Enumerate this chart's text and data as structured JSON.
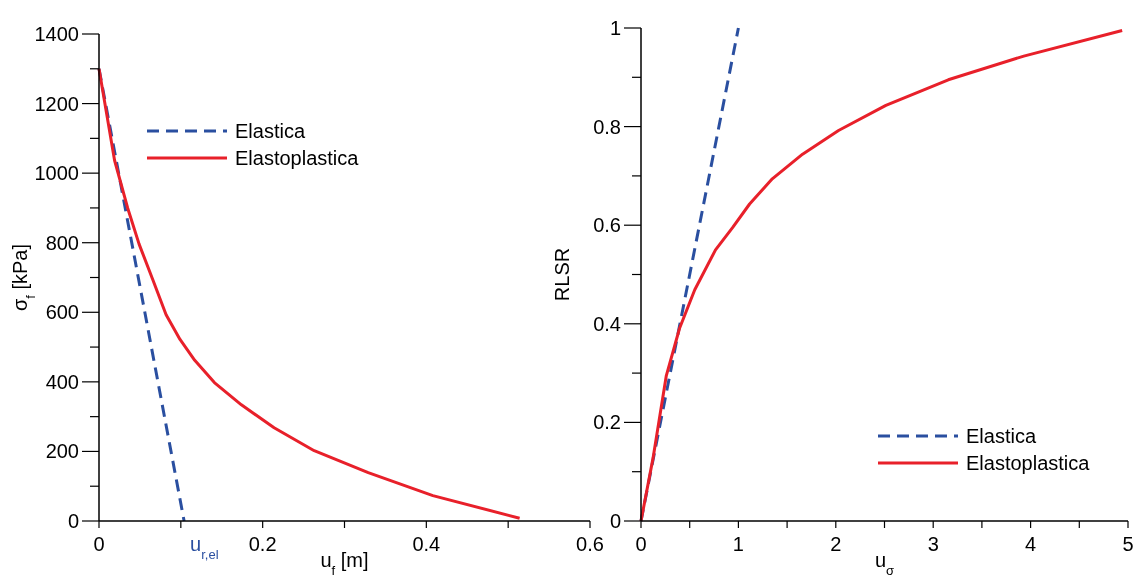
{
  "chart_data": [
    {
      "type": "line",
      "xlabel": "u$_{f}$ [m]",
      "ylabel": "σ$_{f}$ [kPa]",
      "xlim": [
        0,
        0.6
      ],
      "ylim": [
        0,
        1400
      ],
      "xticks": [
        0,
        {
          "value": 0.1,
          "label": null
        },
        0.2,
        {
          "value": 0.3,
          "label": null
        },
        0.4,
        {
          "value": 0.5,
          "label": null
        },
        0.6
      ],
      "yticks": [
        0,
        {
          "value": 100,
          "label": null
        },
        200,
        {
          "value": 300,
          "label": null
        },
        400,
        {
          "value": 500,
          "label": null
        },
        600,
        {
          "value": 700,
          "label": null
        },
        800,
        {
          "value": 900,
          "label": null
        },
        1000,
        {
          "value": 1100,
          "label": null
        },
        1200,
        {
          "value": 1300,
          "label": null
        },
        1400
      ],
      "legend": "top left",
      "annotations": [
        {
          "text": "u$_{r,el}$",
          "x": 0.104,
          "y": 0
        }
      ],
      "series": [
        {
          "name": "Elastica",
          "color": "#2a4fa0",
          "line_style": "dashed",
          "x": [
            0,
            0.104
          ],
          "values": [
            1300,
            0
          ]
        },
        {
          "name": "Elastoplastica",
          "color": "#e8202a",
          "line_style": "solid",
          "x": [
            0,
            0.019,
            0.035,
            0.049,
            0.066,
            0.082,
            0.099,
            0.117,
            0.141,
            0.174,
            0.214,
            0.263,
            0.329,
            0.408,
            0.514
          ],
          "values": [
            1300,
            1037,
            900,
            796,
            692,
            593,
            522,
            462,
            398,
            334,
            268,
            202,
            139,
            73,
            8
          ]
        }
      ]
    },
    {
      "type": "line",
      "xlabel": "u$_{σ}$",
      "ylabel": "RLSR",
      "xlim": [
        0,
        5
      ],
      "ylim": [
        0,
        1
      ],
      "xticks": [
        0,
        {
          "value": 0.5,
          "label": null
        },
        1,
        {
          "value": 1.5,
          "label": null
        },
        2,
        {
          "value": 2.5,
          "label": null
        },
        3,
        {
          "value": 3.5,
          "label": null
        },
        4,
        {
          "value": 4.5,
          "label": null
        },
        5
      ],
      "yticks": [
        0,
        {
          "value": 0.1,
          "label": null
        },
        0.2,
        {
          "value": 0.3,
          "label": null
        },
        0.4,
        {
          "value": 0.5,
          "label": null
        },
        0.6,
        {
          "value": 0.7,
          "label": null
        },
        0.8,
        {
          "value": 0.9,
          "label": null
        },
        1
      ],
      "legend": "bottom right",
      "series": [
        {
          "name": "Elastica",
          "color": "#2a4fa0",
          "line_style": "dashed",
          "x": [
            0,
            1
          ],
          "values": [
            0,
            1
          ]
        },
        {
          "name": "Elastoplastica",
          "color": "#e8202a",
          "line_style": "solid",
          "x": [
            0,
            0.124,
            0.26,
            0.396,
            0.552,
            0.765,
            0.94,
            1.115,
            1.348,
            1.659,
            2.028,
            2.514,
            3.155,
            3.93,
            4.94
          ],
          "values": [
            0,
            0.128,
            0.295,
            0.391,
            0.469,
            0.55,
            0.595,
            0.643,
            0.694,
            0.744,
            0.792,
            0.843,
            0.895,
            0.943,
            0.995
          ]
        }
      ]
    }
  ]
}
